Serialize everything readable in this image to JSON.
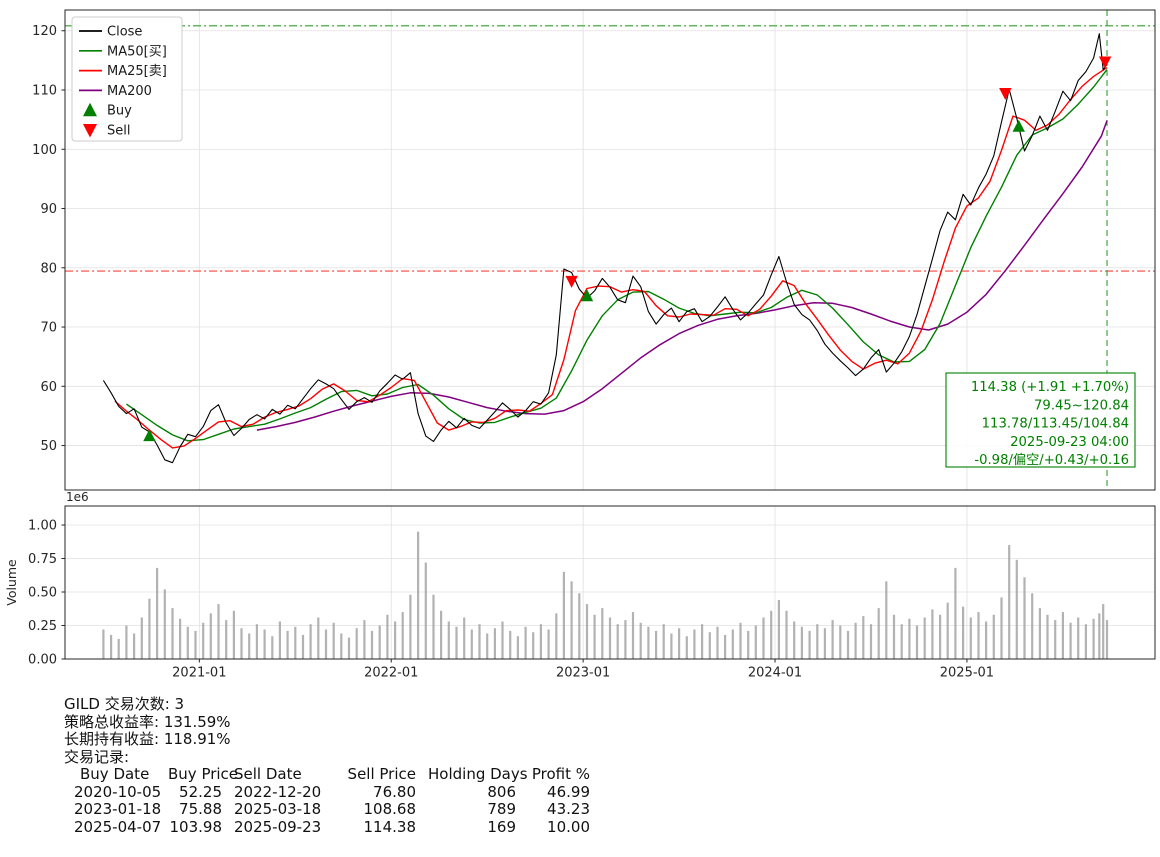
{
  "page": {
    "background": "#ffffff"
  },
  "chart_data": {
    "type": "line",
    "title": "",
    "price_panel": {
      "xlim": [
        2020.3,
        2025.98
      ],
      "ylim": [
        42.5,
        123.5
      ],
      "yticks": [
        50,
        60,
        70,
        80,
        90,
        100,
        110,
        120
      ],
      "xticks": [
        {
          "x": 2021.0,
          "label": "2021-01"
        },
        {
          "x": 2022.0,
          "label": "2022-01"
        },
        {
          "x": 2023.0,
          "label": "2023-01"
        },
        {
          "x": 2024.0,
          "label": "2024-01"
        },
        {
          "x": 2025.0,
          "label": "2025-01"
        }
      ],
      "legend": [
        {
          "label": "Close",
          "type": "line",
          "color": "#000000"
        },
        {
          "label": "MA50[买]",
          "type": "line",
          "color": "#008000"
        },
        {
          "label": "MA25[卖]",
          "type": "line",
          "color": "#ff0000"
        },
        {
          "label": "MA200",
          "type": "line",
          "color": "#800080"
        },
        {
          "label": "Buy",
          "type": "marker-up",
          "color": "#008000"
        },
        {
          "label": "Sell",
          "type": "marker-down",
          "color": "#ff0000"
        }
      ],
      "x": [
        2020.5,
        2020.54,
        2020.58,
        2020.62,
        2020.66,
        2020.7,
        2020.74,
        2020.78,
        2020.82,
        2020.86,
        2020.9,
        2020.94,
        2020.98,
        2021.02,
        2021.06,
        2021.1,
        2021.14,
        2021.18,
        2021.22,
        2021.26,
        2021.3,
        2021.34,
        2021.38,
        2021.42,
        2021.46,
        2021.5,
        2021.54,
        2021.58,
        2021.62,
        2021.66,
        2021.7,
        2021.74,
        2021.78,
        2021.82,
        2021.86,
        2021.9,
        2021.94,
        2021.98,
        2022.02,
        2022.06,
        2022.1,
        2022.14,
        2022.18,
        2022.22,
        2022.26,
        2022.3,
        2022.34,
        2022.38,
        2022.42,
        2022.46,
        2022.5,
        2022.54,
        2022.58,
        2022.62,
        2022.66,
        2022.7,
        2022.74,
        2022.78,
        2022.82,
        2022.86,
        2022.9,
        2022.94,
        2022.98,
        2023.02,
        2023.06,
        2023.1,
        2023.14,
        2023.18,
        2023.22,
        2023.26,
        2023.3,
        2023.34,
        2023.38,
        2023.42,
        2023.46,
        2023.5,
        2023.54,
        2023.58,
        2023.62,
        2023.66,
        2023.7,
        2023.74,
        2023.78,
        2023.82,
        2023.86,
        2023.9,
        2023.94,
        2023.98,
        2024.02,
        2024.06,
        2024.1,
        2024.14,
        2024.18,
        2024.22,
        2024.26,
        2024.3,
        2024.34,
        2024.38,
        2024.42,
        2024.46,
        2024.5,
        2024.54,
        2024.58,
        2024.62,
        2024.66,
        2024.7,
        2024.74,
        2024.78,
        2024.82,
        2024.86,
        2024.9,
        2024.94,
        2024.98,
        2025.02,
        2025.06,
        2025.1,
        2025.14,
        2025.18,
        2025.22,
        2025.26,
        2025.3,
        2025.34,
        2025.38,
        2025.42,
        2025.46,
        2025.5,
        2025.54,
        2025.58,
        2025.62,
        2025.66,
        2025.69,
        2025.71,
        2025.73
      ],
      "close": [
        61.0,
        58.9,
        56.6,
        55.4,
        56.2,
        53.1,
        52.3,
        50.1,
        47.6,
        47.1,
        49.8,
        51.9,
        51.5,
        53.2,
        55.9,
        56.9,
        53.8,
        51.7,
        52.9,
        54.4,
        55.2,
        54.5,
        56.1,
        55.3,
        56.8,
        56.2,
        57.9,
        59.6,
        61.1,
        60.4,
        59.6,
        57.8,
        56.1,
        57.4,
        58.1,
        57.3,
        59.2,
        60.5,
        61.9,
        61.2,
        62.3,
        55.4,
        51.6,
        50.7,
        52.6,
        54.1,
        53.0,
        54.6,
        53.4,
        52.9,
        54.3,
        55.7,
        57.2,
        56.1,
        54.8,
        55.9,
        57.4,
        57.0,
        58.9,
        65.3,
        79.8,
        79.2,
        76.4,
        74.9,
        76.1,
        78.2,
        76.7,
        74.6,
        74.1,
        78.6,
        76.8,
        72.6,
        70.5,
        72.1,
        73.2,
        70.9,
        72.6,
        73.1,
        70.9,
        71.8,
        73.4,
        75.1,
        73.0,
        71.2,
        72.4,
        73.9,
        75.4,
        78.8,
        81.9,
        77.6,
        73.8,
        72.1,
        71.2,
        69.4,
        67.1,
        65.6,
        64.3,
        63.1,
        61.8,
        62.9,
        64.8,
        66.2,
        62.4,
        63.9,
        65.8,
        68.4,
        72.1,
        76.8,
        81.5,
        86.3,
        89.4,
        88.1,
        92.4,
        90.6,
        93.5,
        95.8,
        98.9,
        104.6,
        110.1,
        105.2,
        99.7,
        102.3,
        105.6,
        103.2,
        106.4,
        109.8,
        108.2,
        111.6,
        113.1,
        115.4,
        119.5,
        113.4,
        114.38
      ],
      "ma25": {
        "color": "#ff0000",
        "x": [
          2020.56,
          2020.62,
          2020.68,
          2020.74,
          2020.8,
          2020.86,
          2020.92,
          2020.98,
          2021.04,
          2021.1,
          2021.16,
          2021.22,
          2021.28,
          2021.34,
          2021.4,
          2021.46,
          2021.52,
          2021.58,
          2021.64,
          2021.7,
          2021.76,
          2021.82,
          2021.88,
          2021.94,
          2022.0,
          2022.06,
          2022.12,
          2022.18,
          2022.24,
          2022.3,
          2022.36,
          2022.42,
          2022.48,
          2022.54,
          2022.6,
          2022.66,
          2022.72,
          2022.78,
          2022.84,
          2022.9,
          2022.96,
          2023.02,
          2023.08,
          2023.14,
          2023.2,
          2023.26,
          2023.32,
          2023.38,
          2023.44,
          2023.5,
          2023.56,
          2023.62,
          2023.68,
          2023.74,
          2023.8,
          2023.86,
          2023.92,
          2023.98,
          2024.04,
          2024.1,
          2024.16,
          2024.22,
          2024.28,
          2024.34,
          2024.4,
          2024.46,
          2024.52,
          2024.58,
          2024.64,
          2024.7,
          2024.76,
          2024.82,
          2024.88,
          2024.94,
          2025.0,
          2025.06,
          2025.12,
          2025.18,
          2025.24,
          2025.3,
          2025.36,
          2025.42,
          2025.48,
          2025.54,
          2025.6,
          2025.66,
          2025.73
        ],
        "y": [
          57.5,
          55.8,
          54.3,
          52.6,
          51.0,
          49.6,
          49.9,
          51.2,
          52.6,
          54.0,
          54.2,
          53.2,
          53.6,
          54.8,
          55.6,
          56.1,
          56.7,
          57.9,
          59.5,
          60.4,
          59.2,
          57.6,
          57.4,
          58.5,
          59.8,
          61.3,
          61.0,
          57.4,
          53.8,
          52.6,
          53.2,
          54.0,
          53.9,
          54.6,
          55.9,
          56.0,
          55.8,
          57.1,
          58.6,
          64.5,
          72.8,
          76.5,
          76.9,
          76.8,
          75.9,
          76.3,
          76.0,
          73.6,
          71.9,
          71.7,
          72.2,
          72.1,
          72.0,
          73.1,
          73.0,
          71.9,
          73.0,
          75.2,
          77.8,
          77.0,
          73.9,
          71.3,
          68.6,
          66.1,
          64.2,
          62.9,
          63.9,
          64.4,
          63.8,
          65.6,
          69.3,
          74.6,
          80.9,
          86.7,
          90.4,
          91.8,
          94.6,
          99.8,
          105.6,
          104.9,
          103.2,
          104.1,
          105.9,
          108.4,
          110.6,
          112.3,
          113.78
        ]
      },
      "ma50": {
        "color": "#008000",
        "x": [
          2020.62,
          2020.7,
          2020.78,
          2020.86,
          2020.94,
          2021.02,
          2021.1,
          2021.18,
          2021.26,
          2021.34,
          2021.42,
          2021.5,
          2021.58,
          2021.66,
          2021.74,
          2021.82,
          2021.9,
          2021.98,
          2022.06,
          2022.14,
          2022.22,
          2022.3,
          2022.38,
          2022.46,
          2022.54,
          2022.62,
          2022.7,
          2022.78,
          2022.86,
          2022.94,
          2023.02,
          2023.1,
          2023.18,
          2023.26,
          2023.34,
          2023.42,
          2023.5,
          2023.58,
          2023.66,
          2023.74,
          2023.82,
          2023.9,
          2023.98,
          2024.06,
          2024.14,
          2024.22,
          2024.3,
          2024.38,
          2024.46,
          2024.54,
          2024.62,
          2024.7,
          2024.78,
          2024.86,
          2024.94,
          2025.02,
          2025.1,
          2025.18,
          2025.26,
          2025.34,
          2025.42,
          2025.5,
          2025.58,
          2025.66,
          2025.73
        ],
        "y": [
          57.0,
          55.2,
          53.4,
          51.8,
          50.8,
          51.0,
          51.9,
          52.8,
          53.2,
          53.6,
          54.5,
          55.5,
          56.4,
          57.8,
          59.1,
          59.3,
          58.4,
          58.7,
          59.8,
          60.3,
          58.5,
          56.2,
          54.4,
          53.8,
          53.9,
          54.8,
          55.6,
          56.3,
          58.0,
          62.6,
          67.8,
          71.9,
          74.6,
          75.9,
          76.0,
          74.7,
          73.2,
          72.3,
          71.9,
          72.2,
          72.5,
          72.4,
          73.3,
          75.0,
          76.2,
          75.4,
          73.2,
          70.4,
          67.5,
          65.3,
          64.1,
          64.2,
          66.2,
          70.6,
          77.0,
          83.4,
          88.7,
          93.6,
          99.0,
          102.4,
          103.6,
          105.1,
          107.6,
          110.5,
          113.45
        ]
      },
      "ma200": {
        "color": "#800080",
        "x": [
          2021.3,
          2021.4,
          2021.5,
          2021.6,
          2021.7,
          2021.8,
          2021.9,
          2022.0,
          2022.1,
          2022.2,
          2022.3,
          2022.4,
          2022.5,
          2022.6,
          2022.7,
          2022.8,
          2022.9,
          2023.0,
          2023.1,
          2023.2,
          2023.3,
          2023.4,
          2023.5,
          2023.6,
          2023.7,
          2023.8,
          2023.9,
          2024.0,
          2024.1,
          2024.2,
          2024.3,
          2024.4,
          2024.5,
          2024.6,
          2024.7,
          2024.8,
          2024.9,
          2025.0,
          2025.1,
          2025.2,
          2025.3,
          2025.4,
          2025.5,
          2025.6,
          2025.7,
          2025.73
        ],
        "y": [
          52.6,
          53.2,
          53.9,
          54.8,
          55.8,
          56.7,
          57.5,
          58.3,
          58.9,
          58.8,
          58.2,
          57.3,
          56.4,
          55.8,
          55.4,
          55.3,
          55.9,
          57.4,
          59.6,
          62.2,
          64.8,
          67.0,
          68.9,
          70.3,
          71.3,
          71.9,
          72.3,
          72.9,
          73.6,
          74.1,
          74.0,
          73.3,
          72.2,
          71.0,
          70.0,
          69.5,
          70.5,
          72.5,
          75.5,
          79.5,
          83.8,
          88.2,
          92.5,
          97.0,
          102.2,
          104.84
        ]
      },
      "buy_markers": [
        [
          2020.74,
          51.6
        ],
        [
          2023.02,
          75.2
        ],
        [
          2025.27,
          103.8
        ]
      ],
      "sell_markers": [
        [
          2022.94,
          77.8
        ],
        [
          2025.2,
          109.5
        ],
        [
          2025.72,
          114.8
        ]
      ],
      "hlines": [
        {
          "y": 120.84,
          "color": "#33a02c"
        },
        {
          "y": 79.45,
          "color": "#ff4040"
        }
      ],
      "vline": {
        "x": 2025.73,
        "color": "#33a02c"
      },
      "annotation": {
        "color": "#008000",
        "lines": [
          "114.38 (+1.91 +1.70%)",
          "79.45~120.84",
          "113.78/113.45/104.84",
          "2025-09-23 04:00",
          "-0.98/偏空/+0.43/+0.16"
        ]
      }
    },
    "volume_panel": {
      "ylabel": "Volume",
      "offset_label": "1e6",
      "bar_color": "#a0a0a0",
      "yticks": [
        {
          "v": 0.0,
          "label": "0.00"
        },
        {
          "v": 0.25,
          "label": "0.25"
        },
        {
          "v": 0.5,
          "label": "0.50"
        },
        {
          "v": 0.75,
          "label": "0.75"
        },
        {
          "v": 1.0,
          "label": "1.00"
        }
      ],
      "values": [
        0.22,
        0.18,
        0.15,
        0.25,
        0.19,
        0.31,
        0.45,
        0.68,
        0.52,
        0.38,
        0.3,
        0.24,
        0.21,
        0.27,
        0.34,
        0.41,
        0.29,
        0.36,
        0.23,
        0.19,
        0.26,
        0.22,
        0.17,
        0.28,
        0.21,
        0.24,
        0.18,
        0.26,
        0.31,
        0.22,
        0.27,
        0.19,
        0.16,
        0.23,
        0.29,
        0.21,
        0.25,
        0.33,
        0.28,
        0.35,
        0.48,
        0.95,
        0.72,
        0.48,
        0.36,
        0.28,
        0.24,
        0.31,
        0.22,
        0.26,
        0.19,
        0.23,
        0.28,
        0.21,
        0.17,
        0.24,
        0.2,
        0.26,
        0.22,
        0.34,
        0.65,
        0.58,
        0.49,
        0.41,
        0.33,
        0.38,
        0.31,
        0.26,
        0.29,
        0.35,
        0.27,
        0.24,
        0.21,
        0.26,
        0.19,
        0.23,
        0.17,
        0.22,
        0.26,
        0.2,
        0.24,
        0.18,
        0.22,
        0.27,
        0.21,
        0.25,
        0.31,
        0.36,
        0.44,
        0.36,
        0.28,
        0.24,
        0.21,
        0.26,
        0.23,
        0.29,
        0.25,
        0.21,
        0.27,
        0.32,
        0.26,
        0.38,
        0.58,
        0.33,
        0.26,
        0.3,
        0.25,
        0.31,
        0.37,
        0.33,
        0.42,
        0.68,
        0.39,
        0.31,
        0.35,
        0.28,
        0.33,
        0.46,
        0.85,
        0.74,
        0.61,
        0.49,
        0.38,
        0.33,
        0.29,
        0.35,
        0.27,
        0.31,
        0.26,
        0.3,
        0.34,
        0.41,
        0.29
      ]
    }
  },
  "stats": {
    "summary_lines": [
      "GILD 交易次数: 3",
      "策略总收益率: 131.59%",
      "长期持有收益: 118.91%",
      "交易记录:"
    ],
    "table": {
      "headers": [
        "Buy Date",
        "Buy Price",
        "Sell Date",
        "Sell Price",
        "Holding Days",
        "Profit %"
      ],
      "rows": [
        [
          "2020-10-05",
          "52.25",
          "2022-12-20",
          "76.80",
          "806",
          "46.99"
        ],
        [
          "2023-01-18",
          "75.88",
          "2025-03-18",
          "108.68",
          "789",
          "43.23"
        ],
        [
          "2025-04-07",
          "103.98",
          "2025-09-23",
          "114.38",
          "169",
          "10.00"
        ]
      ]
    }
  }
}
